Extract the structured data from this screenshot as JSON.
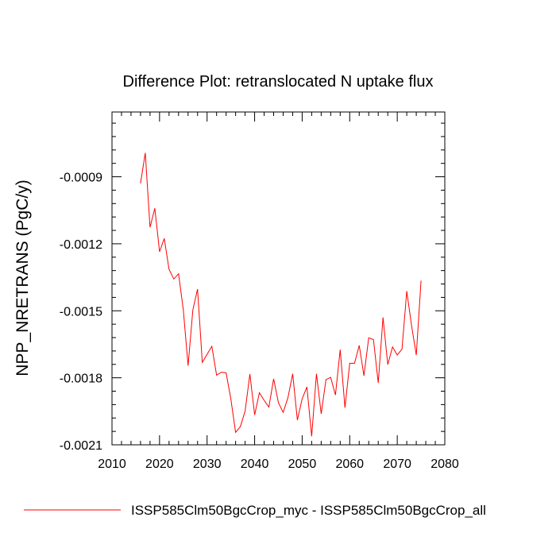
{
  "chart_data": {
    "type": "line",
    "title": "Difference Plot: retranslocated N uptake flux",
    "ylabel": "NPP_NRETRANS  (PgC/y)",
    "xlabel": "",
    "xlim": [
      2010,
      2080
    ],
    "ylim": [
      -0.0021,
      -0.00061
    ],
    "x_ticks": [
      2010,
      2020,
      2030,
      2040,
      2050,
      2060,
      2070,
      2080
    ],
    "x_tick_labels": [
      "2010",
      "2020",
      "2030",
      "2040",
      "2050",
      "2060",
      "2070",
      "2080"
    ],
    "y_ticks": [
      -0.0021,
      -0.0018,
      -0.0015,
      -0.0012,
      -0.0009
    ],
    "y_tick_labels": [
      "-0.0021",
      "-0.0018",
      "-0.0015",
      "-0.0012",
      "-0.0009"
    ],
    "grid": false,
    "legend_position": "bottom",
    "series": [
      {
        "name": "ISSP585Clm50BgcCrop_myc - ISSP585Clm50BgcCrop_all",
        "color": "#ff0000",
        "x": [
          2016,
          2017,
          2018,
          2019,
          2020,
          2021,
          2022,
          2023,
          2024,
          2025,
          2026,
          2027,
          2028,
          2029,
          2030,
          2031,
          2032,
          2033,
          2034,
          2035,
          2036,
          2037,
          2038,
          2039,
          2040,
          2041,
          2042,
          2043,
          2044,
          2045,
          2046,
          2047,
          2048,
          2049,
          2050,
          2051,
          2052,
          2053,
          2054,
          2055,
          2056,
          2057,
          2058,
          2059,
          2060,
          2061,
          2062,
          2063,
          2064,
          2065,
          2066,
          2067,
          2068,
          2069,
          2070,
          2071,
          2072,
          2073,
          2074,
          2075
        ],
        "y": [
          -0.00093,
          -0.000793,
          -0.001126,
          -0.001041,
          -0.001236,
          -0.001176,
          -0.001314,
          -0.001358,
          -0.001334,
          -0.001496,
          -0.001746,
          -0.001496,
          -0.001403,
          -0.001731,
          -0.001695,
          -0.001659,
          -0.001788,
          -0.001775,
          -0.001778,
          -0.001894,
          -0.002044,
          -0.002019,
          -0.001949,
          -0.001783,
          -0.001966,
          -0.001867,
          -0.001901,
          -0.001931,
          -0.001805,
          -0.001911,
          -0.001955,
          -0.001889,
          -0.001782,
          -0.001989,
          -0.001894,
          -0.001841,
          -0.002062,
          -0.001782,
          -0.001961,
          -0.001808,
          -0.001798,
          -0.001877,
          -0.001674,
          -0.001934,
          -0.001735,
          -0.001735,
          -0.001655,
          -0.001791,
          -0.001621,
          -0.001629,
          -0.001823,
          -0.00153,
          -0.001741,
          -0.001662,
          -0.001698,
          -0.001672,
          -0.001412,
          -0.001565,
          -0.001698,
          -0.001365
        ]
      }
    ]
  }
}
